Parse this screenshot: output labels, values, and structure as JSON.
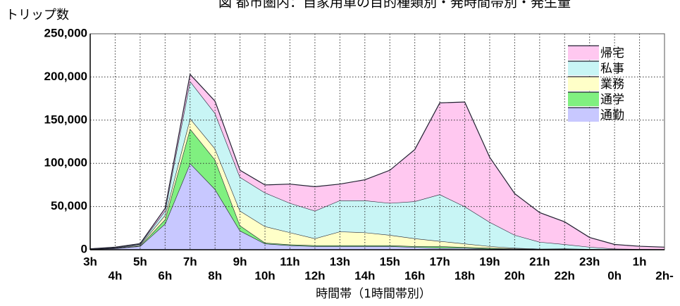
{
  "chart_data": {
    "type": "stacked_area",
    "title": "図 都市圏内：自家用車の目的種類別・発時間帯別・発生量",
    "ylabel": "トリップ数",
    "xlabel": "時間帯（1時間帯別）",
    "categories": [
      "3h",
      "4h",
      "5h",
      "6h",
      "7h",
      "8h",
      "9h",
      "10h",
      "11h",
      "12h",
      "13h",
      "14h",
      "15h",
      "16h",
      "17h",
      "18h",
      "19h",
      "20h",
      "21h",
      "22h",
      "23h",
      "0h",
      "1h",
      "2h-"
    ],
    "series": [
      {
        "name": "通勤",
        "color": "#c8c8ff",
        "values": [
          500,
          1500,
          4000,
          30000,
          100000,
          70000,
          22000,
          7000,
          5000,
          4000,
          4000,
          4000,
          4000,
          3000,
          2000,
          2000,
          1000,
          1000,
          500,
          500,
          300,
          200,
          100,
          100
        ]
      },
      {
        "name": "通学",
        "color": "#80f080",
        "values": [
          100,
          300,
          500,
          5000,
          40000,
          34000,
          6000,
          1000,
          1000,
          1000,
          1000,
          1000,
          1000,
          1000,
          2000,
          1000,
          1000,
          200,
          200,
          200,
          100,
          100,
          0,
          0
        ]
      },
      {
        "name": "業務",
        "color": "#ffffc8",
        "values": [
          100,
          300,
          1000,
          5000,
          12000,
          13000,
          17000,
          19000,
          14000,
          8000,
          16000,
          15000,
          12000,
          9000,
          6000,
          4000,
          2000,
          800,
          300,
          600,
          300,
          200,
          100,
          100
        ]
      },
      {
        "name": "私事",
        "color": "#c8f5f5",
        "values": [
          200,
          500,
          1000,
          5000,
          43000,
          41000,
          39000,
          39000,
          34000,
          32000,
          36000,
          37000,
          37000,
          43000,
          54000,
          43000,
          28000,
          15000,
          8000,
          5000,
          2500,
          600,
          500,
          400
        ]
      },
      {
        "name": "帰宅",
        "color": "#ffc8f0",
        "values": [
          100,
          400,
          500,
          3000,
          8000,
          14000,
          8000,
          9000,
          22000,
          28000,
          19000,
          24000,
          38000,
          60000,
          106000,
          121000,
          75000,
          48000,
          34000,
          26000,
          11000,
          5000,
          3300,
          2400
        ]
      }
    ],
    "ylim": [
      0,
      250000
    ],
    "yticks": [
      0,
      {
        "value": 50000,
        "label": "50,000"
      },
      {
        "value": 100000,
        "label": "100,000"
      },
      {
        "value": 150000,
        "label": "150,000"
      },
      {
        "value": 200000,
        "label": "200,000"
      },
      {
        "value": 250000,
        "label": "250,000"
      }
    ],
    "grid": true,
    "legend": "upper right"
  }
}
